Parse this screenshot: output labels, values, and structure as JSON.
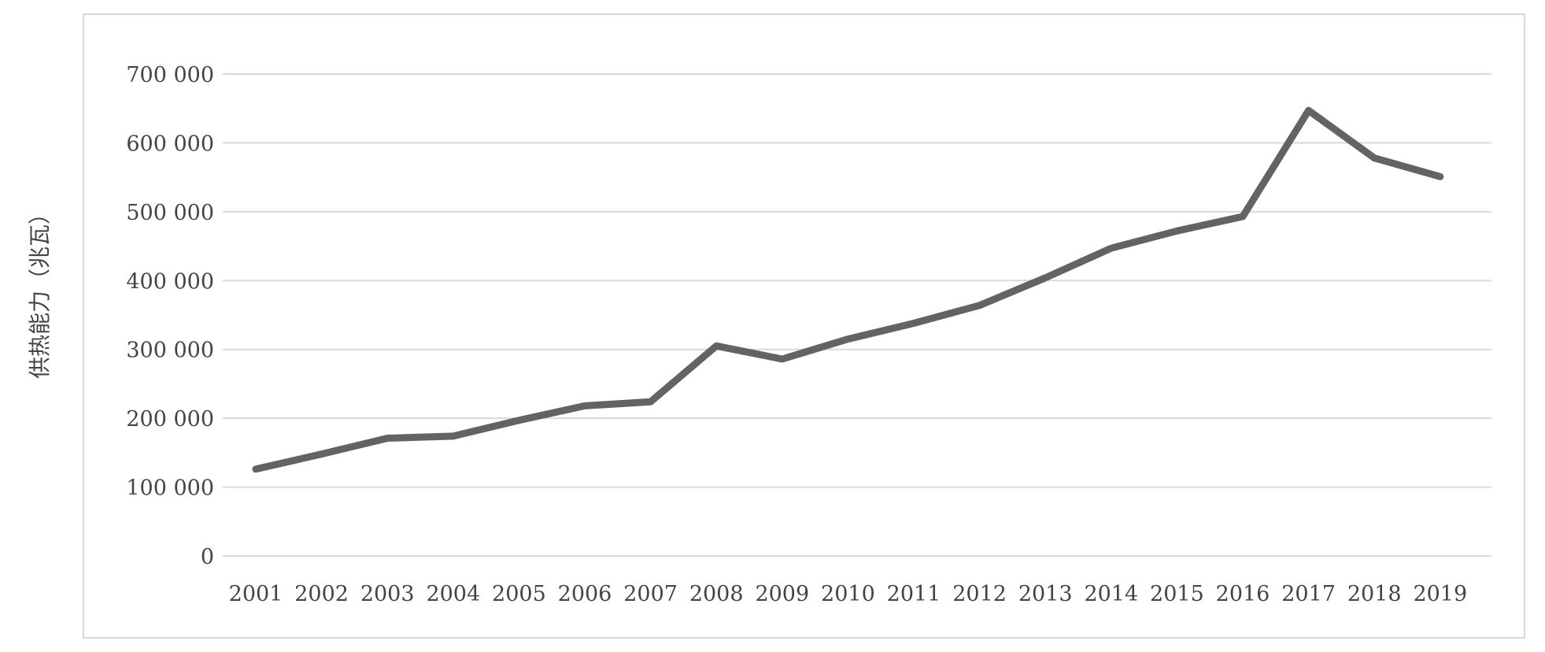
{
  "chart_data": {
    "type": "line",
    "title": "",
    "xlabel": "",
    "ylabel": "供热能力（兆瓦）",
    "categories": [
      "2001",
      "2002",
      "2003",
      "2004",
      "2005",
      "2006",
      "2007",
      "2008",
      "2009",
      "2010",
      "2011",
      "2012",
      "2013",
      "2014",
      "2015",
      "2016",
      "2017",
      "2018",
      "2019"
    ],
    "series": [
      {
        "values": [
          126000,
          148000,
          171000,
          174000,
          197000,
          218000,
          224000,
          305000,
          286000,
          315000,
          338000,
          364000,
          404000,
          447000,
          472000,
          493000,
          647000,
          578000,
          551000
        ],
        "color": "#636363"
      }
    ],
    "y_ticks": [
      0,
      100000,
      200000,
      300000,
      400000,
      500000,
      600000,
      700000
    ],
    "y_tick_labels": [
      "0",
      "100 000",
      "200 000",
      "300 000",
      "400 000",
      "500 000",
      "600 000",
      "700 000"
    ],
    "ylim": [
      0,
      700000
    ],
    "grid": true,
    "legend": "none",
    "colors": {
      "grid": "#d9d9d9",
      "frame": "#d9d9d9",
      "text": "#444444"
    }
  }
}
